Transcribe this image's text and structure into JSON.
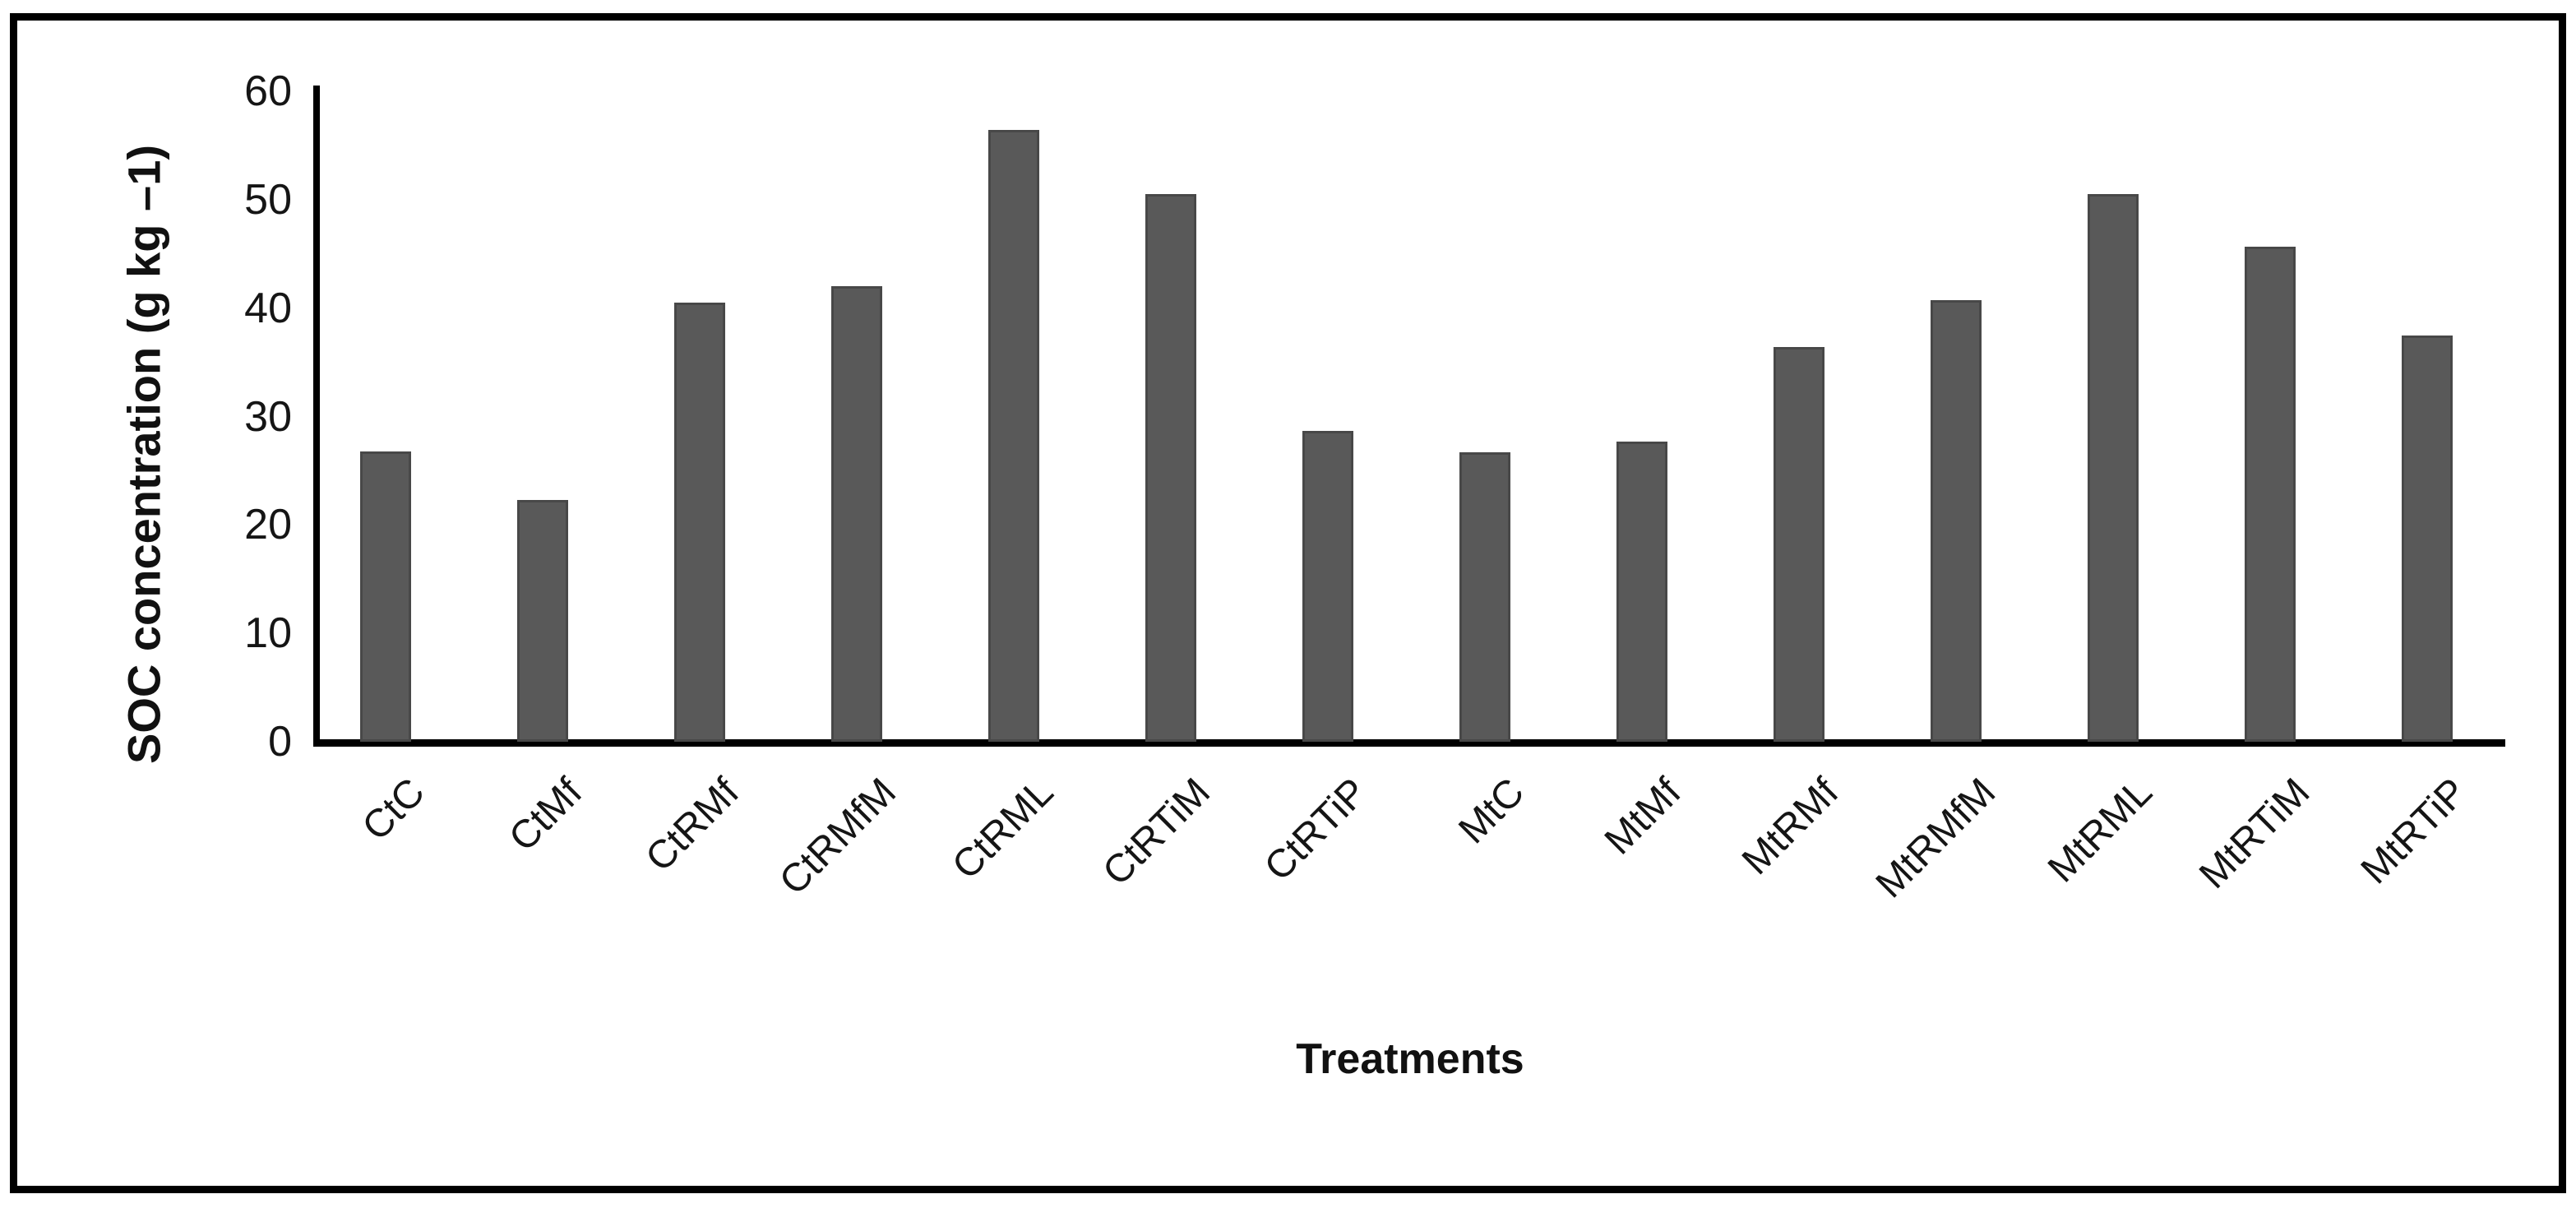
{
  "figure": {
    "background": "#ffffff",
    "frame_border_color": "#000000",
    "bar_fill_color": "#595959",
    "bar_edge_color": "#484848",
    "axis_color": "#000000"
  },
  "chart_data": {
    "type": "bar",
    "title": "",
    "xlabel": "Treatments",
    "ylabel": "SOC concentration (g kg –1)",
    "categories": [
      "CtC",
      "CtMf",
      "CtRMf",
      "CtRMfM",
      "CtRML",
      "CtRTiM",
      "CtRTiP",
      "MtC",
      "MtMf",
      "MtRMf",
      "MtRMfM",
      "MtRML",
      "MtRTiM",
      "MtRTiP"
    ],
    "values": [
      26.8,
      22.3,
      40.5,
      42.0,
      56.4,
      50.5,
      28.7,
      26.7,
      27.7,
      36.4,
      40.7,
      50.5,
      45.7,
      37.5
    ],
    "ylim": [
      0,
      60
    ],
    "yticks": [
      0,
      10,
      20,
      30,
      40,
      50,
      60
    ],
    "grid": false,
    "legend": null,
    "bar_color": "#595959"
  }
}
